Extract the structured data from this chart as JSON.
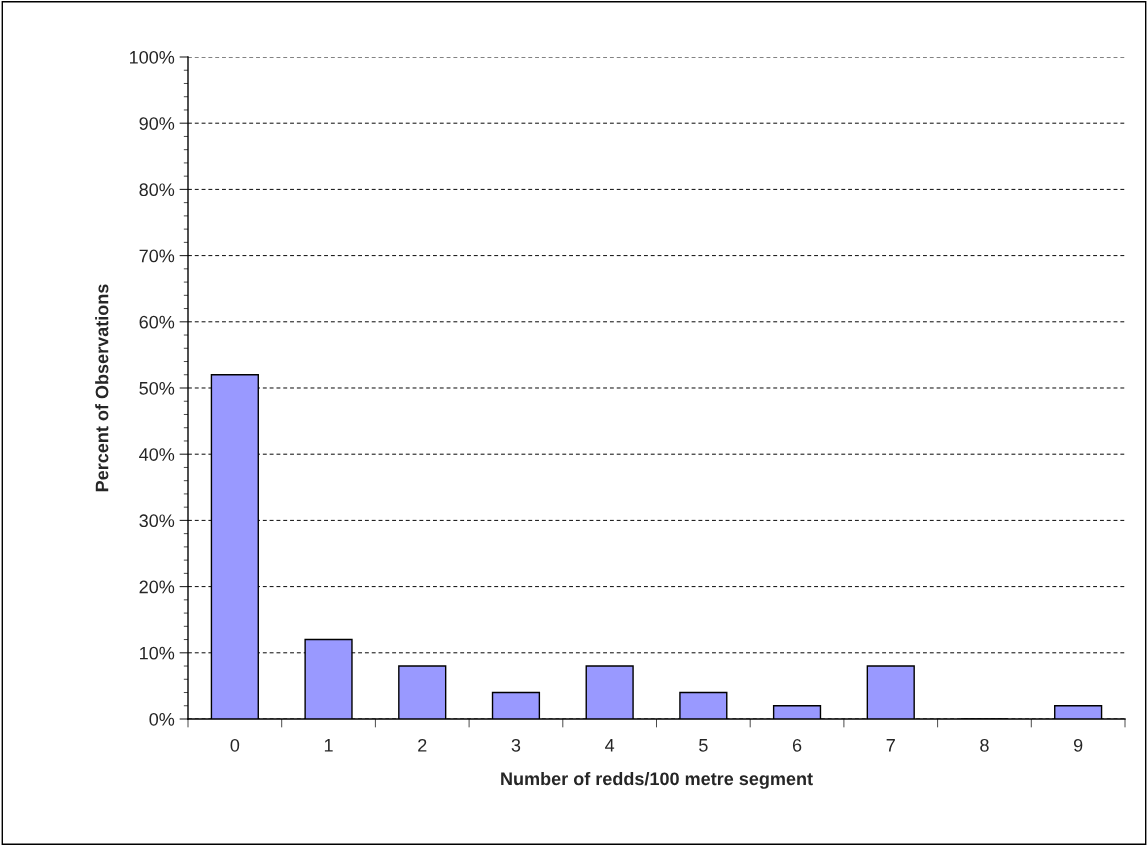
{
  "chart_data": {
    "type": "bar",
    "xlabel": "Number of redds/100 metre segment",
    "ylabel": "Percent of Observations",
    "categories": [
      "0",
      "1",
      "2",
      "3",
      "4",
      "5",
      "6",
      "7",
      "8",
      "9"
    ],
    "values": [
      52,
      12,
      8,
      4,
      8,
      4,
      2,
      8,
      0,
      2
    ],
    "color": "#9999ff",
    "ylim": [
      0,
      100
    ],
    "yticks": [
      {
        "value": 0,
        "label": "0%"
      },
      {
        "value": 10,
        "label": "10%"
      },
      {
        "value": 20,
        "label": "20%"
      },
      {
        "value": 30,
        "label": "30%"
      },
      {
        "value": 40,
        "label": "40%"
      },
      {
        "value": 50,
        "label": "50%"
      },
      {
        "value": 60,
        "label": "60%"
      },
      {
        "value": 70,
        "label": "70%"
      },
      {
        "value": 80,
        "label": "80%"
      },
      {
        "value": 90,
        "label": "90%"
      },
      {
        "value": 100,
        "label": "100%"
      }
    ],
    "grid": "y",
    "legend": false
  }
}
